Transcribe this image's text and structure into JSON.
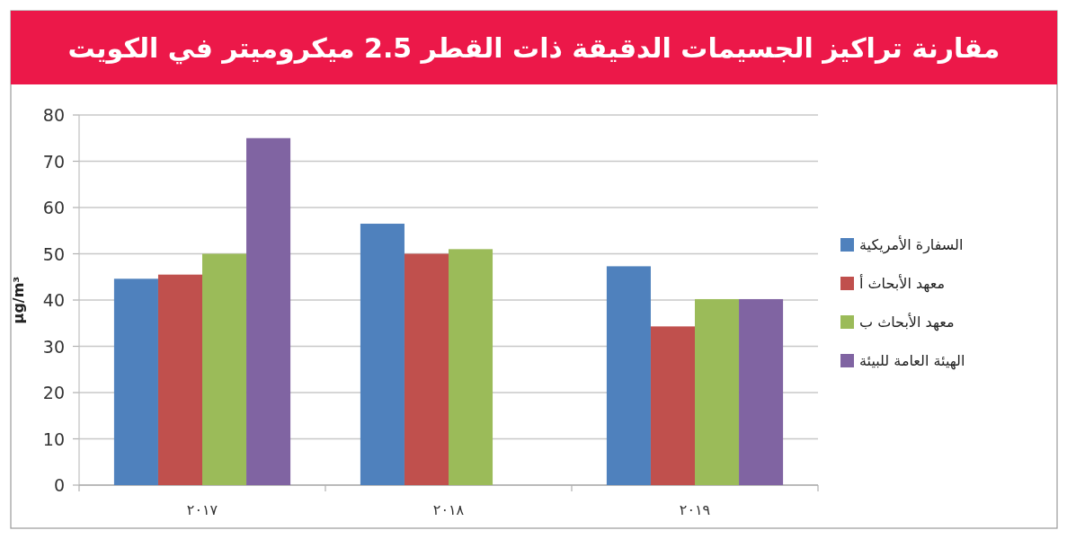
{
  "chart_data": {
    "type": "bar",
    "title": "مقارنة تراكيز الجسيمات الدقيقة ذات القطر 2.5 ميكروميتر في الكويت",
    "ylabel": "µg/m³",
    "categories": [
      "٢٠١٧",
      "٢٠١٨",
      "٢٠١٩"
    ],
    "series": [
      {
        "name": "السفارة الأمريكية",
        "color": "#4f81bd",
        "values": [
          44.6,
          56.5,
          47.3
        ]
      },
      {
        "name": "معهد الأبحاث أ",
        "color": "#c0504d",
        "values": [
          45.5,
          50,
          34.3
        ]
      },
      {
        "name": "معهد الأبحاث ب",
        "color": "#9bbb59",
        "values": [
          50,
          51,
          40.2
        ]
      },
      {
        "name": "الهيئة العامة للبيئة",
        "color": "#8064a2",
        "values": [
          75,
          null,
          40.2
        ]
      }
    ],
    "ylim": [
      0,
      80
    ],
    "yticks": [
      0,
      10,
      20,
      30,
      40,
      50,
      60,
      70,
      80
    ],
    "grid": "y",
    "legend": "right"
  }
}
